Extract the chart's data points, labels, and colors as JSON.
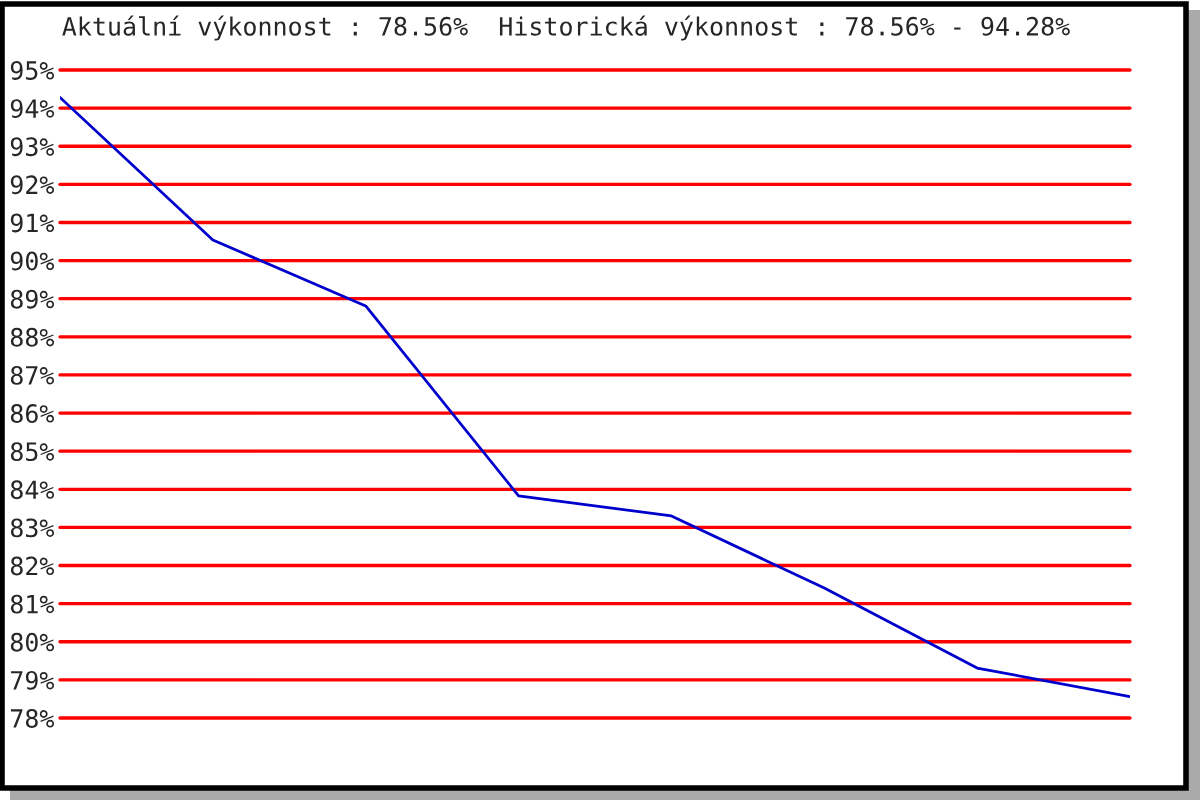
{
  "chart_data": {
    "type": "line",
    "title": "Aktuální výkonnost : 78.56%  Historická výkonnost : 78.56% - 94.28%",
    "categories": [
      null,
      null,
      null,
      null,
      null,
      null,
      null,
      null
    ],
    "series": [
      {
        "color": "#0000cc",
        "values": [
          94.28,
          90.54,
          88.81,
          83.83,
          83.3,
          81.41,
          79.31,
          78.56
        ]
      }
    ],
    "ylim": [
      78,
      95
    ],
    "yticks": [
      {
        "value": 95,
        "label": "95%"
      },
      {
        "value": 94,
        "label": "94%"
      },
      {
        "value": 93,
        "label": "93%"
      },
      {
        "value": 92,
        "label": "92%"
      },
      {
        "value": 91,
        "label": "91%"
      },
      {
        "value": 90,
        "label": "90%"
      },
      {
        "value": 89,
        "label": "89%"
      },
      {
        "value": 88,
        "label": "88%"
      },
      {
        "value": 87,
        "label": "87%"
      },
      {
        "value": 86,
        "label": "86%"
      },
      {
        "value": 85,
        "label": "85%"
      },
      {
        "value": 84,
        "label": "84%"
      },
      {
        "value": 83,
        "label": "83%"
      },
      {
        "value": 82,
        "label": "82%"
      },
      {
        "value": 81,
        "label": "81%"
      },
      {
        "value": 80,
        "label": "80%"
      },
      {
        "value": 79,
        "label": "79%"
      },
      {
        "value": 78,
        "label": "78%"
      }
    ],
    "grid": "y",
    "tick_labels": "y",
    "marker": "none",
    "line_style": "solid"
  }
}
